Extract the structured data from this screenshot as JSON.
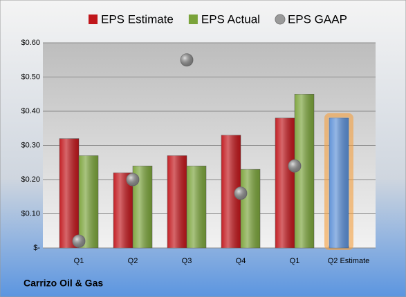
{
  "chart_data": {
    "type": "bar",
    "categories": [
      "Q1",
      "Q2",
      "Q3",
      "Q4",
      "Q1",
      "Q2 Estimate"
    ],
    "series": [
      {
        "name": "EPS Estimate",
        "color": "#c0161b",
        "colors": [
          "#c0161b",
          "#c0161b",
          "#c0161b",
          "#c0161b",
          "#c0161b",
          "#5b8fd6"
        ],
        "values": [
          0.32,
          0.22,
          0.27,
          0.33,
          0.38,
          0.38
        ]
      },
      {
        "name": "EPS Actual",
        "color": "#7aa33a",
        "values": [
          0.27,
          0.24,
          0.24,
          0.23,
          0.45,
          null
        ]
      },
      {
        "name": "EPS GAAP",
        "color": "#9a9a9a",
        "marker": "bubble",
        "values": [
          0.02,
          0.2,
          0.55,
          0.16,
          0.24,
          null
        ]
      }
    ],
    "ylim": [
      0,
      0.6
    ],
    "yticks": [
      {
        "value": 0,
        "label": "$-"
      },
      {
        "value": 0.1,
        "label": "$0.10"
      },
      {
        "value": 0.2,
        "label": "$0.20"
      },
      {
        "value": 0.3,
        "label": "$0.30"
      },
      {
        "value": 0.4,
        "label": "$0.40"
      },
      {
        "value": 0.5,
        "label": "$0.50"
      },
      {
        "value": 0.6,
        "label": "$0.60"
      }
    ],
    "grid": true,
    "footer": "Carrizo Oil & Gas"
  }
}
